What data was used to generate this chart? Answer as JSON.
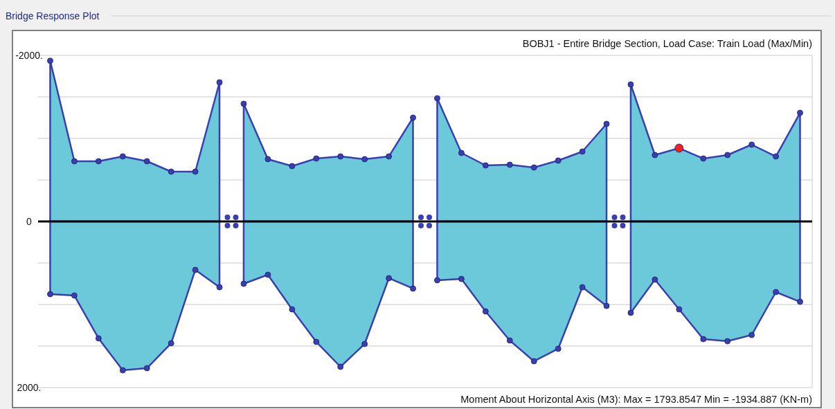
{
  "chart_data": {
    "type": "area",
    "title": "Bridge Response Plot",
    "subtitle": "BOBJ1 - Entire Bridge Section,  Load Case: Train Load (Max/Min)",
    "annotations": [
      "Moment About Horizontal Axis  (M3):  Max = 1793.8547    Min = -1934.887  (KN-m)"
    ],
    "categories": [
      null,
      null,
      null,
      null,
      null,
      null,
      null,
      null,
      null,
      null,
      null,
      null,
      null,
      null,
      null,
      null,
      null,
      null,
      null,
      null,
      null,
      null,
      null,
      null,
      null,
      null,
      null,
      null,
      null,
      null,
      null,
      null
    ],
    "series": [
      {
        "color": "#6cc9d9",
        "values": [
          -1935,
          -725,
          -725,
          -783,
          -725,
          -600,
          -600,
          -1675,
          -1417,
          -750,
          -667,
          -758,
          -783,
          -750,
          -783,
          -1250,
          -1483,
          -825,
          -675,
          -683,
          -650,
          -733,
          -842,
          -1175,
          -1650,
          -800,
          -883,
          -758,
          -800,
          -925,
          -783,
          -1308
        ],
        "colors": [
          "#3a3fb0",
          "#3a3fb0",
          "#3a3fb0",
          "#3a3fb0",
          "#3a3fb0",
          "#3a3fb0",
          "#3a3fb0",
          "#3a3fb0",
          "#3a3fb0",
          "#3a3fb0",
          "#3a3fb0",
          "#3a3fb0",
          "#3a3fb0",
          "#3a3fb0",
          "#3a3fb0",
          "#3a3fb0",
          "#3a3fb0",
          "#3a3fb0",
          "#3a3fb0",
          "#3a3fb0",
          "#3a3fb0",
          "#3a3fb0",
          "#3a3fb0",
          "#3a3fb0",
          "#3a3fb0",
          "#3a3fb0",
          "#ee2222",
          "#3a3fb0",
          "#3a3fb0",
          "#3a3fb0",
          "#3a3fb0",
          "#3a3fb0"
        ]
      },
      {
        "color": "#6cc9d9",
        "values": [
          875,
          892,
          1408,
          1792,
          1767,
          1467,
          583,
          792,
          750,
          642,
          1058,
          1450,
          1750,
          1475,
          683,
          808,
          708,
          692,
          1083,
          1433,
          1683,
          1533,
          792,
          1017,
          1100,
          700,
          1058,
          1417,
          1442,
          1367,
          850,
          967
        ]
      }
    ],
    "ylim": [
      2000,
      -2000
    ],
    "yticks": [
      {
        "value": -2000,
        "label": "-2000."
      },
      {
        "value": -1500,
        "label": null
      },
      {
        "value": -1000,
        "label": null
      },
      {
        "value": -500,
        "label": null
      },
      0,
      {
        "value": 500,
        "label": null
      },
      {
        "value": 1000,
        "label": null
      },
      {
        "value": 1500,
        "label": null
      },
      {
        "value": 2000,
        "label": "2000."
      }
    ],
    "ref_lines": [
      {
        "axis": "y",
        "value": 0,
        "color": "#000000"
      }
    ],
    "grid": "y",
    "marker": "circle",
    "line_style": "solid"
  }
}
